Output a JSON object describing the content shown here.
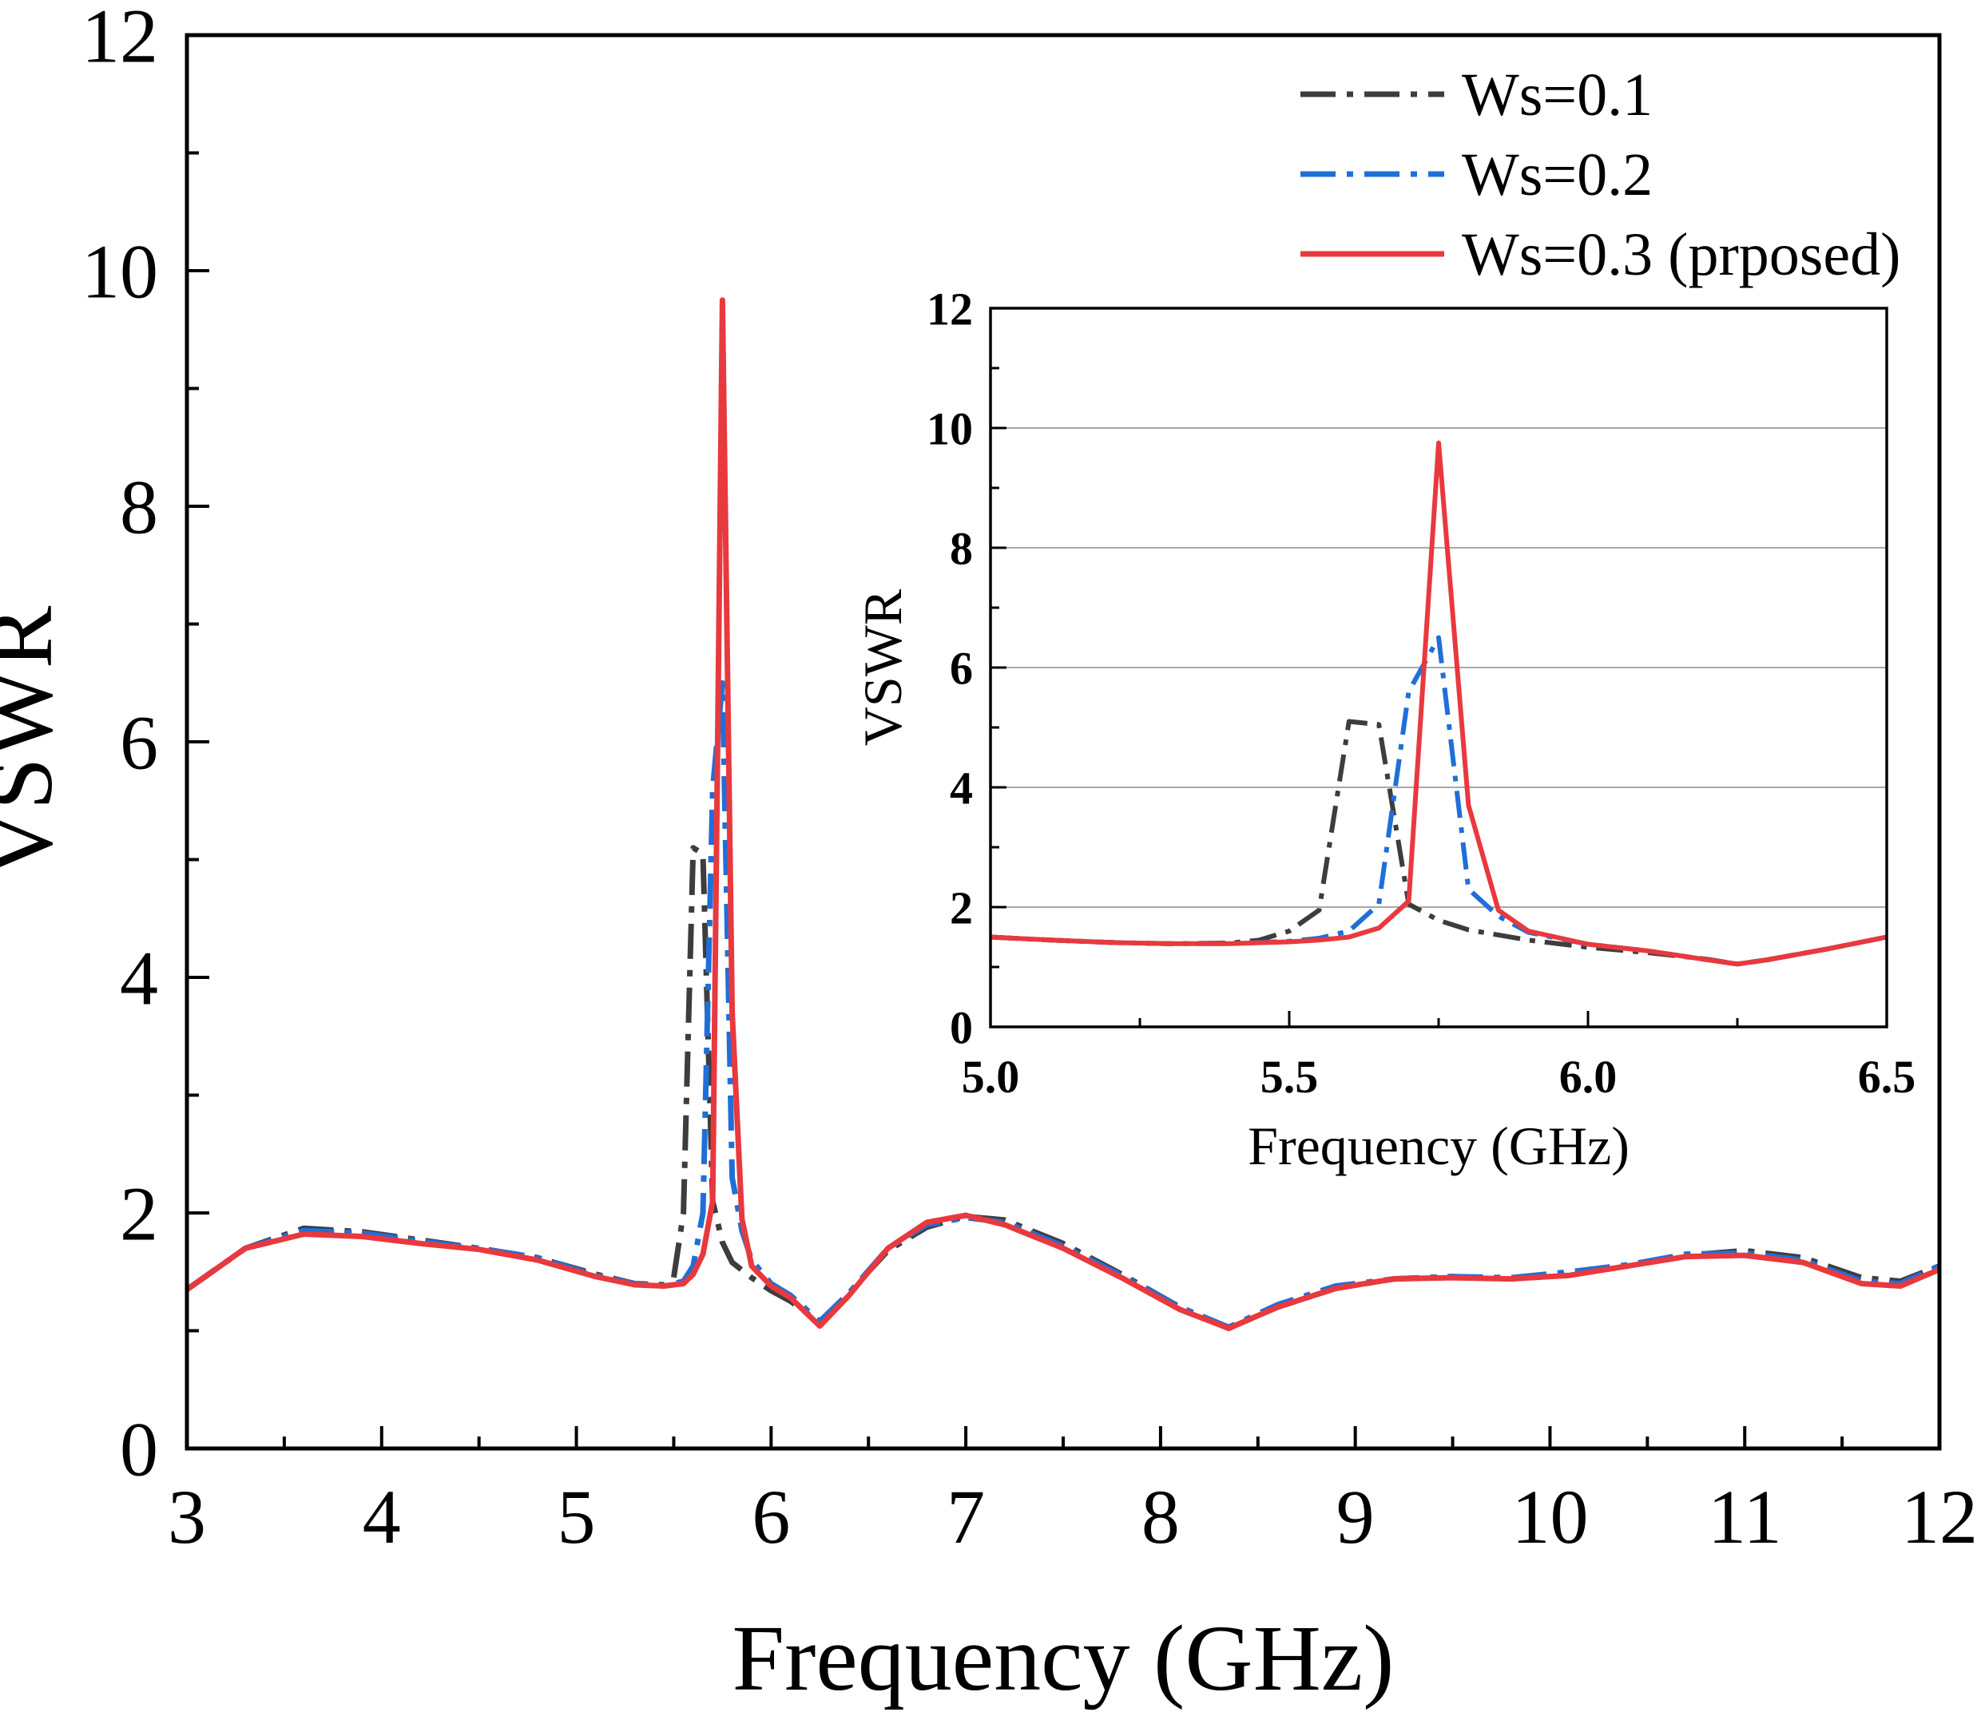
{
  "chart_data": [
    {
      "type": "line",
      "title": "",
      "xlabel": "Frequency (GHz)",
      "ylabel": "VSWR",
      "xlim": [
        3,
        12
      ],
      "ylim": [
        0,
        12
      ],
      "xticks": [
        "3",
        "4",
        "5",
        "6",
        "7",
        "8",
        "9",
        "10",
        "11",
        "12"
      ],
      "yticks": [
        "0",
        "2",
        "4",
        "6",
        "8",
        "10",
        "12"
      ],
      "grid": false,
      "legend": "top-right",
      "series": [
        {
          "name": "Ws=0.1",
          "color": "#3d3d3d",
          "style": "dashdot",
          "x": [
            3.0,
            3.3,
            3.6,
            3.9,
            4.2,
            4.5,
            4.8,
            5.1,
            5.3,
            5.45,
            5.5,
            5.55,
            5.6,
            5.65,
            5.7,
            5.75,
            5.8,
            5.9,
            6.0,
            6.1,
            6.25,
            6.4,
            6.6,
            6.8,
            7.0,
            7.2,
            7.5,
            7.8,
            8.1,
            8.35,
            8.6,
            8.9,
            9.2,
            9.5,
            9.8,
            10.1,
            10.4,
            10.7,
            11.0,
            11.3,
            11.6,
            11.8,
            12.0
          ],
          "y": [
            1.35,
            1.7,
            1.87,
            1.84,
            1.77,
            1.7,
            1.62,
            1.48,
            1.4,
            1.39,
            1.45,
            2.0,
            5.1,
            5.05,
            2.1,
            1.75,
            1.58,
            1.45,
            1.34,
            1.25,
            1.07,
            1.32,
            1.68,
            1.88,
            1.97,
            1.94,
            1.74,
            1.48,
            1.2,
            1.02,
            1.2,
            1.36,
            1.44,
            1.46,
            1.44,
            1.48,
            1.55,
            1.64,
            1.68,
            1.62,
            1.45,
            1.42,
            1.55
          ]
        },
        {
          "name": "Ws=0.2",
          "color": "#1f6fd8",
          "style": "dashdot",
          "x": [
            3.0,
            3.3,
            3.6,
            3.9,
            4.2,
            4.5,
            4.8,
            5.1,
            5.3,
            5.45,
            5.55,
            5.6,
            5.65,
            5.7,
            5.75,
            5.8,
            5.85,
            5.9,
            6.0,
            6.1,
            6.25,
            6.4,
            6.6,
            6.8,
            7.0,
            7.2,
            7.5,
            7.8,
            8.1,
            8.35,
            8.6,
            8.9,
            9.2,
            9.5,
            9.8,
            10.1,
            10.4,
            10.7,
            11.0,
            11.3,
            11.6,
            11.8,
            12.0
          ],
          "y": [
            1.35,
            1.7,
            1.85,
            1.83,
            1.76,
            1.7,
            1.62,
            1.47,
            1.4,
            1.38,
            1.42,
            1.55,
            2.0,
            5.6,
            6.5,
            2.3,
            1.85,
            1.6,
            1.4,
            1.3,
            1.08,
            1.32,
            1.7,
            1.9,
            1.96,
            1.92,
            1.72,
            1.47,
            1.2,
            1.03,
            1.22,
            1.38,
            1.44,
            1.46,
            1.45,
            1.5,
            1.56,
            1.65,
            1.66,
            1.6,
            1.42,
            1.4,
            1.55
          ]
        },
        {
          "name": "Ws=0.3 (prposed)",
          "color": "#e8393e",
          "style": "solid",
          "x": [
            3.0,
            3.3,
            3.6,
            3.9,
            4.2,
            4.5,
            4.8,
            5.1,
            5.3,
            5.45,
            5.55,
            5.6,
            5.65,
            5.7,
            5.75,
            5.8,
            5.85,
            5.9,
            6.0,
            6.1,
            6.25,
            6.4,
            6.6,
            6.8,
            7.0,
            7.2,
            7.5,
            7.8,
            8.1,
            8.35,
            8.6,
            8.9,
            9.2,
            9.5,
            9.8,
            10.1,
            10.4,
            10.7,
            11.0,
            11.3,
            11.6,
            11.8,
            12.0
          ],
          "y": [
            1.35,
            1.7,
            1.82,
            1.8,
            1.74,
            1.69,
            1.6,
            1.46,
            1.39,
            1.38,
            1.4,
            1.48,
            1.65,
            2.1,
            9.75,
            3.7,
            1.95,
            1.55,
            1.38,
            1.28,
            1.04,
            1.3,
            1.7,
            1.92,
            1.98,
            1.9,
            1.7,
            1.45,
            1.18,
            1.02,
            1.2,
            1.36,
            1.44,
            1.45,
            1.44,
            1.47,
            1.55,
            1.63,
            1.64,
            1.58,
            1.4,
            1.38,
            1.52
          ]
        }
      ]
    },
    {
      "type": "line",
      "title": "",
      "xlabel": "Frequency (GHz)",
      "ylabel": "VSWR",
      "xlim": [
        5.0,
        6.5
      ],
      "ylim": [
        0,
        12
      ],
      "xticks": [
        "5.0",
        "5.5",
        "6.0",
        "6.5"
      ],
      "yticks": [
        "0",
        "2",
        "4",
        "6",
        "8",
        "10",
        "12"
      ],
      "grid": true,
      "series": [
        {
          "color": "#3d3d3d",
          "style": "dashdot",
          "x": [
            5.0,
            5.1,
            5.2,
            5.3,
            5.4,
            5.45,
            5.5,
            5.55,
            5.6,
            5.65,
            5.7,
            5.75,
            5.8,
            5.9,
            6.0,
            6.1,
            6.2,
            6.25,
            6.3,
            6.4,
            6.5
          ],
          "y": [
            1.5,
            1.45,
            1.41,
            1.39,
            1.4,
            1.45,
            1.6,
            1.95,
            5.1,
            5.05,
            2.05,
            1.78,
            1.62,
            1.45,
            1.33,
            1.24,
            1.13,
            1.05,
            1.12,
            1.3,
            1.5
          ]
        },
        {
          "color": "#1f6fd8",
          "style": "dashdot",
          "x": [
            5.0,
            5.1,
            5.2,
            5.3,
            5.4,
            5.5,
            5.55,
            5.6,
            5.65,
            5.7,
            5.75,
            5.8,
            5.85,
            5.9,
            6.0,
            6.1,
            6.2,
            6.25,
            6.3,
            6.4,
            6.5
          ],
          "y": [
            1.5,
            1.45,
            1.41,
            1.39,
            1.39,
            1.43,
            1.48,
            1.6,
            2.05,
            5.6,
            6.5,
            2.3,
            1.85,
            1.58,
            1.38,
            1.27,
            1.12,
            1.05,
            1.12,
            1.3,
            1.5
          ]
        },
        {
          "color": "#e8393e",
          "style": "solid",
          "x": [
            5.0,
            5.1,
            5.2,
            5.3,
            5.4,
            5.5,
            5.55,
            5.6,
            5.65,
            5.7,
            5.75,
            5.8,
            5.85,
            5.9,
            6.0,
            6.1,
            6.2,
            6.25,
            6.3,
            6.4,
            6.5
          ],
          "y": [
            1.5,
            1.45,
            1.41,
            1.39,
            1.39,
            1.42,
            1.45,
            1.5,
            1.65,
            2.1,
            9.75,
            3.7,
            1.95,
            1.6,
            1.38,
            1.27,
            1.12,
            1.05,
            1.12,
            1.3,
            1.5
          ]
        }
      ]
    }
  ]
}
